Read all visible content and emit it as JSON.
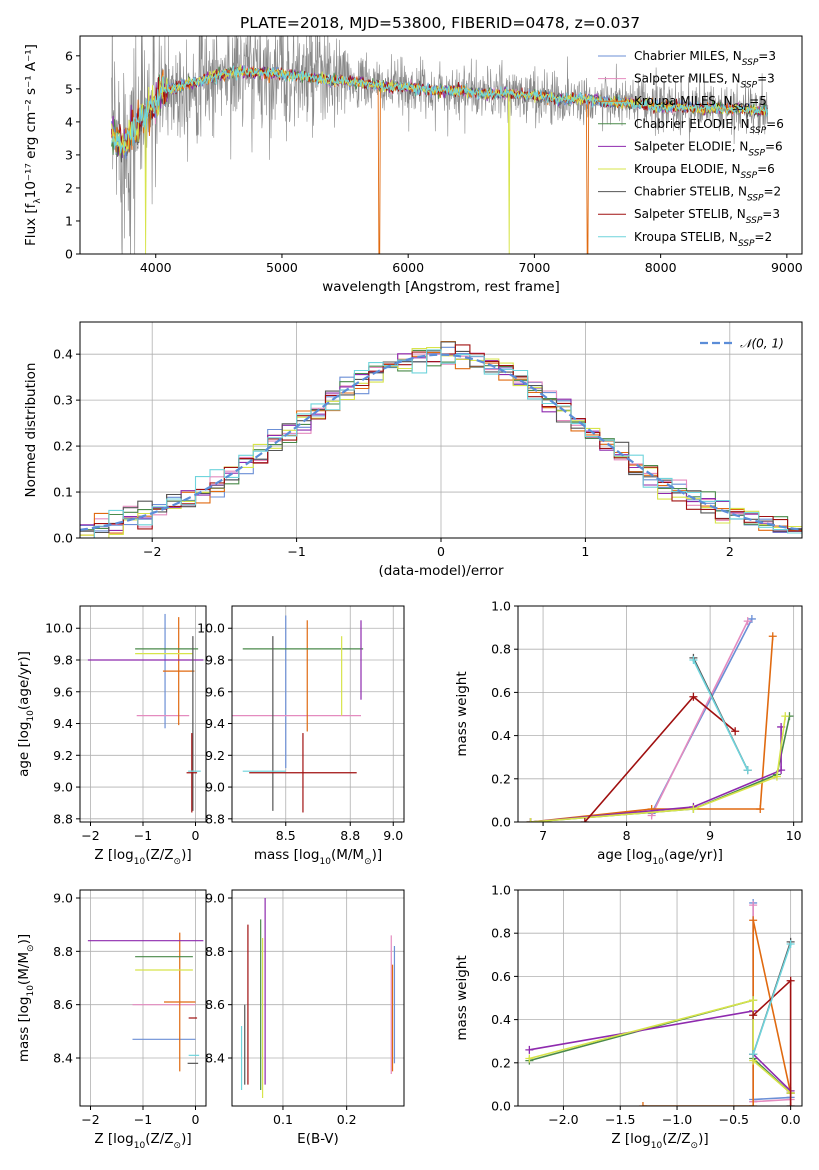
{
  "title": "PLATE=2018, MJD=53800, FIBERID=0478, z=0.037",
  "colors": [
    "#6b8fd6",
    "#e48bbf",
    "#e06a10",
    "#4a8a4a",
    "#8e2aae",
    "#d7e44a",
    "#555555",
    "#a01010",
    "#6fd4dc"
  ],
  "legend_spectrum": [
    {
      "pre": "Chabrier MILES, N",
      "sub": "SSP",
      "post": "=3"
    },
    {
      "pre": "Salpeter MILES, N",
      "sub": "SSP",
      "post": "=3"
    },
    {
      "pre": "Kroupa MILES, N",
      "sub": "SSP",
      "post": "=5"
    },
    {
      "pre": "Chabrier ELODIE, N",
      "sub": "SSP",
      "post": "=6"
    },
    {
      "pre": "Salpeter ELODIE, N",
      "sub": "SSP",
      "post": "=6"
    },
    {
      "pre": "Kroupa ELODIE, N",
      "sub": "SSP",
      "post": "=6"
    },
    {
      "pre": "Chabrier STELIB, N",
      "sub": "SSP",
      "post": "=2"
    },
    {
      "pre": "Salpeter STELIB, N",
      "sub": "SSP",
      "post": "=3"
    },
    {
      "pre": "Kroupa STELIB, N",
      "sub": "SSP",
      "post": "=2"
    }
  ],
  "legend_hist": "𝒩(0, 1)",
  "chart_data": [
    {
      "type": "line",
      "xlabel": "wavelength [Angstrom, rest frame]",
      "ylabel": "Flux [fλ10⁻¹⁷ erg cm⁻² s⁻¹ A⁻¹]",
      "xlim": [
        3400,
        9120
      ],
      "ylim": [
        0,
        6.6
      ],
      "xticks": [
        4000,
        5000,
        6000,
        7000,
        8000,
        9000
      ],
      "yticks": [
        0,
        1,
        2,
        3,
        4,
        5,
        6
      ],
      "continuum": [
        [
          3650,
          3.6
        ],
        [
          3750,
          3.3
        ],
        [
          3850,
          3.9
        ],
        [
          3950,
          4.4
        ],
        [
          4050,
          4.9
        ],
        [
          4200,
          5.1
        ],
        [
          4400,
          5.3
        ],
        [
          4600,
          5.5
        ],
        [
          4800,
          5.5
        ],
        [
          5000,
          5.45
        ],
        [
          5200,
          5.35
        ],
        [
          5400,
          5.25
        ],
        [
          5600,
          5.2
        ],
        [
          5800,
          5.05
        ],
        [
          6000,
          5.05
        ],
        [
          6200,
          4.95
        ],
        [
          6400,
          4.95
        ],
        [
          6600,
          4.85
        ],
        [
          6800,
          4.85
        ],
        [
          7000,
          4.8
        ],
        [
          7200,
          4.7
        ],
        [
          7400,
          4.7
        ],
        [
          7600,
          4.6
        ],
        [
          7800,
          4.55
        ],
        [
          8000,
          4.45
        ],
        [
          8200,
          4.45
        ],
        [
          8400,
          4.4
        ],
        [
          8600,
          4.4
        ],
        [
          8850,
          4.3
        ]
      ],
      "dips": [
        {
          "x": 5770,
          "series": 2
        },
        {
          "x": 6800,
          "series": 5
        },
        {
          "x": 7420,
          "series": 2
        },
        {
          "x": 3920,
          "series": 5
        }
      ]
    },
    {
      "type": "bar",
      "xlabel": "(data-model)/error",
      "ylabel": "Normed distribution",
      "xlim": [
        -2.5,
        2.5
      ],
      "ylim": [
        0,
        0.47
      ],
      "xticks": [
        -2,
        -1,
        0,
        1,
        2
      ],
      "yticks": [
        0.0,
        0.1,
        0.2,
        0.3,
        0.4
      ],
      "bin_width": 0.1,
      "bins_start": -2.5,
      "gaussian": {
        "mu": 0,
        "sigma": 1,
        "name": "N(0,1)"
      }
    },
    {
      "type": "scatter",
      "xlabel": "Z [log10(Z/Z⊙)]",
      "ylabel": "age  [log10(age/yr)]",
      "xlim": [
        -2.2,
        0.2
      ],
      "ylim": [
        8.78,
        10.14
      ],
      "xticks": [
        -2,
        -1,
        0
      ],
      "yticks": [
        8.8,
        9.0,
        9.2,
        9.4,
        9.6,
        9.8,
        10.0
      ],
      "bars": [
        {
          "s": 0,
          "x": -0.58,
          "y": 9.73,
          "xe": 0.0,
          "ye": 0.36
        },
        {
          "s": 1,
          "x": -0.62,
          "y": 9.45,
          "xe": 0.5,
          "ye": 0.0
        },
        {
          "s": 2,
          "x": -0.32,
          "y": 9.73,
          "xe": 0.3,
          "ye": 0.34
        },
        {
          "s": 3,
          "x": -0.55,
          "y": 9.87,
          "xe": 0.6,
          "ye": 0.0
        },
        {
          "s": 4,
          "x": -0.95,
          "y": 9.8,
          "xe": 1.1,
          "ye": 0.0
        },
        {
          "s": 5,
          "x": -0.6,
          "y": 9.84,
          "xe": 0.55,
          "ye": 0.0
        },
        {
          "s": 6,
          "x": -0.05,
          "y": 9.4,
          "xe": 0.0,
          "ye": 0.55
        },
        {
          "s": 7,
          "x": -0.07,
          "y": 9.09,
          "xe": 0.1,
          "ye": 0.25
        },
        {
          "s": 8,
          "x": -0.02,
          "y": 9.1,
          "xe": 0.12,
          "ye": 0.0
        }
      ]
    },
    {
      "type": "scatter",
      "xlabel": "mass [log10(M/M⊙)]",
      "ylabel": "",
      "xlim": [
        8.25,
        9.05
      ],
      "ylim": [
        8.78,
        10.14
      ],
      "xticks": [
        8.5,
        8.8,
        9.0
      ],
      "yticks": [
        8.8,
        9.0,
        9.2,
        9.4,
        9.6,
        9.8,
        10.0
      ],
      "bars": [
        {
          "s": 0,
          "x": 8.5,
          "y": 9.6,
          "xe": 0.0,
          "ye": 0.48
        },
        {
          "s": 1,
          "x": 8.55,
          "y": 9.45,
          "xe": 0.3,
          "ye": 0.0
        },
        {
          "s": 2,
          "x": 8.6,
          "y": 9.7,
          "xe": 0.0,
          "ye": 0.35
        },
        {
          "s": 3,
          "x": 8.58,
          "y": 9.87,
          "xe": 0.28,
          "ye": 0.0
        },
        {
          "s": 4,
          "x": 8.85,
          "y": 9.8,
          "xe": 0.0,
          "ye": 0.25
        },
        {
          "s": 5,
          "x": 8.76,
          "y": 9.7,
          "xe": 0.0,
          "ye": 0.25
        },
        {
          "s": 6,
          "x": 8.44,
          "y": 9.4,
          "xe": 0.0,
          "ye": 0.55
        },
        {
          "s": 7,
          "x": 8.58,
          "y": 9.09,
          "xe": 0.25,
          "ye": 0.25
        },
        {
          "s": 8,
          "x": 8.4,
          "y": 9.1,
          "xe": 0.1,
          "ye": 0.0
        }
      ]
    },
    {
      "type": "line",
      "xlabel": "age  [log10(age/yr)]",
      "ylabel": "mass weight",
      "xlim": [
        6.7,
        10.1
      ],
      "ylim": [
        0,
        1.0
      ],
      "xticks": [
        7,
        8,
        9,
        10
      ],
      "yticks": [
        0.0,
        0.2,
        0.4,
        0.6,
        0.8,
        1.0
      ],
      "series": [
        {
          "s": 0,
          "points": [
            [
              8.3,
              0.04
            ],
            [
              9.5,
              0.94
            ]
          ]
        },
        {
          "s": 1,
          "points": [
            [
              8.3,
              0.03
            ],
            [
              9.45,
              0.93
            ]
          ]
        },
        {
          "s": 2,
          "points": [
            [
              6.85,
              0.0
            ],
            [
              8.3,
              0.06
            ],
            [
              9.6,
              0.06
            ],
            [
              9.75,
              0.86
            ]
          ]
        },
        {
          "s": 3,
          "points": [
            [
              6.85,
              0.0
            ],
            [
              8.8,
              0.06
            ],
            [
              9.8,
              0.22
            ],
            [
              9.95,
              0.49
            ]
          ]
        },
        {
          "s": 4,
          "points": [
            [
              6.85,
              0.0
            ],
            [
              8.8,
              0.07
            ],
            [
              9.85,
              0.24
            ],
            [
              9.85,
              0.44
            ]
          ]
        },
        {
          "s": 5,
          "points": [
            [
              6.85,
              0.0
            ],
            [
              8.8,
              0.06
            ],
            [
              9.8,
              0.21
            ],
            [
              9.9,
              0.49
            ]
          ]
        },
        {
          "s": 6,
          "points": [
            [
              8.8,
              0.76
            ],
            [
              9.45,
              0.24
            ]
          ]
        },
        {
          "s": 7,
          "points": [
            [
              7.5,
              0.0
            ],
            [
              8.8,
              0.58
            ],
            [
              9.3,
              0.42
            ]
          ]
        },
        {
          "s": 8,
          "points": [
            [
              8.8,
              0.75
            ],
            [
              9.45,
              0.24
            ]
          ]
        }
      ]
    },
    {
      "type": "scatter",
      "xlabel": "Z [log10(Z/Z⊙)]",
      "ylabel": "mass [log10(M/M⊙)]",
      "xlim": [
        -2.2,
        0.2
      ],
      "ylim": [
        8.22,
        9.03
      ],
      "xticks": [
        -2,
        -1,
        0
      ],
      "yticks": [
        8.4,
        8.6,
        8.8,
        9.0
      ],
      "bars": [
        {
          "s": 0,
          "x": -0.6,
          "y": 8.47,
          "xe": 0.6,
          "ye": 0.0
        },
        {
          "s": 1,
          "x": -0.6,
          "y": 8.6,
          "xe": 0.6,
          "ye": 0.0
        },
        {
          "s": 2,
          "x": -0.3,
          "y": 8.61,
          "xe": 0.3,
          "ye": 0.26
        },
        {
          "s": 3,
          "x": -0.6,
          "y": 8.78,
          "xe": 0.55,
          "ye": 0.0
        },
        {
          "s": 4,
          "x": -0.95,
          "y": 8.84,
          "xe": 1.1,
          "ye": 0.0
        },
        {
          "s": 5,
          "x": -0.6,
          "y": 8.73,
          "xe": 0.55,
          "ye": 0.0
        },
        {
          "s": 6,
          "x": -0.05,
          "y": 8.38,
          "xe": 0.1,
          "ye": 0.0
        },
        {
          "s": 7,
          "x": -0.05,
          "y": 8.55,
          "xe": 0.08,
          "ye": 0.0
        },
        {
          "s": 8,
          "x": -0.03,
          "y": 8.41,
          "xe": 0.1,
          "ye": 0.0
        }
      ]
    },
    {
      "type": "scatter",
      "xlabel": "E(B-V)",
      "ylabel": "",
      "xlim": [
        0.02,
        0.29
      ],
      "ylim": [
        8.22,
        9.03
      ],
      "xticks": [
        0.1,
        0.2
      ],
      "yticks": [
        8.4,
        8.6,
        8.8,
        9.0
      ],
      "bars": [
        {
          "s": 0,
          "x": 0.275,
          "y": 8.6,
          "xe": 0.0,
          "ye": 0.22
        },
        {
          "s": 1,
          "x": 0.27,
          "y": 8.6,
          "xe": 0.0,
          "ye": 0.26
        },
        {
          "s": 2,
          "x": 0.272,
          "y": 8.55,
          "xe": 0.0,
          "ye": 0.2
        },
        {
          "s": 3,
          "x": 0.065,
          "y": 8.6,
          "xe": 0.0,
          "ye": 0.32
        },
        {
          "s": 4,
          "x": 0.072,
          "y": 8.65,
          "xe": 0.0,
          "ye": 0.35
        },
        {
          "s": 5,
          "x": 0.068,
          "y": 8.55,
          "xe": 0.0,
          "ye": 0.3
        },
        {
          "s": 6,
          "x": 0.04,
          "y": 8.45,
          "xe": 0.0,
          "ye": 0.15
        },
        {
          "s": 7,
          "x": 0.045,
          "y": 8.6,
          "xe": 0.0,
          "ye": 0.3
        },
        {
          "s": 8,
          "x": 0.035,
          "y": 8.4,
          "xe": 0.0,
          "ye": 0.12
        }
      ]
    },
    {
      "type": "line",
      "xlabel": "Z [log10(Z/Z⊙)]",
      "ylabel": "mass weight",
      "xlim": [
        -2.4,
        0.1
      ],
      "ylim": [
        0,
        1.0
      ],
      "xticks": [
        -2.0,
        -1.5,
        -1.0,
        -0.5,
        0.0
      ],
      "yticks": [
        0.0,
        0.2,
        0.4,
        0.6,
        0.8,
        1.0
      ],
      "series": [
        {
          "s": 0,
          "points": [
            [
              -0.33,
              0.94
            ],
            [
              -0.33,
              0.03
            ],
            [
              0.0,
              0.04
            ]
          ]
        },
        {
          "s": 1,
          "points": [
            [
              -0.33,
              0.93
            ],
            [
              -0.33,
              0.02
            ],
            [
              0.0,
              0.03
            ]
          ]
        },
        {
          "s": 2,
          "points": [
            [
              -1.3,
              0.0
            ],
            [
              -0.33,
              0.0
            ],
            [
              -0.33,
              0.86
            ],
            [
              0.0,
              0.06
            ]
          ]
        },
        {
          "s": 3,
          "points": [
            [
              -2.3,
              0.21
            ],
            [
              -0.33,
              0.49
            ],
            [
              -0.33,
              0.22
            ],
            [
              0.0,
              0.06
            ]
          ]
        },
        {
          "s": 4,
          "points": [
            [
              -2.3,
              0.26
            ],
            [
              -0.33,
              0.44
            ],
            [
              -0.33,
              0.24
            ],
            [
              0.0,
              0.07
            ]
          ]
        },
        {
          "s": 5,
          "points": [
            [
              -2.3,
              0.22
            ],
            [
              -0.33,
              0.49
            ],
            [
              -0.33,
              0.21
            ],
            [
              0.0,
              0.06
            ]
          ]
        },
        {
          "s": 6,
          "points": [
            [
              -0.33,
              0.24
            ],
            [
              0.0,
              0.76
            ]
          ]
        },
        {
          "s": 7,
          "points": [
            [
              -0.33,
              0.42
            ],
            [
              0.0,
              0.58
            ],
            [
              0.0,
              0.0
            ]
          ]
        },
        {
          "s": 8,
          "points": [
            [
              -0.33,
              0.24
            ],
            [
              0.0,
              0.75
            ]
          ]
        }
      ]
    }
  ]
}
